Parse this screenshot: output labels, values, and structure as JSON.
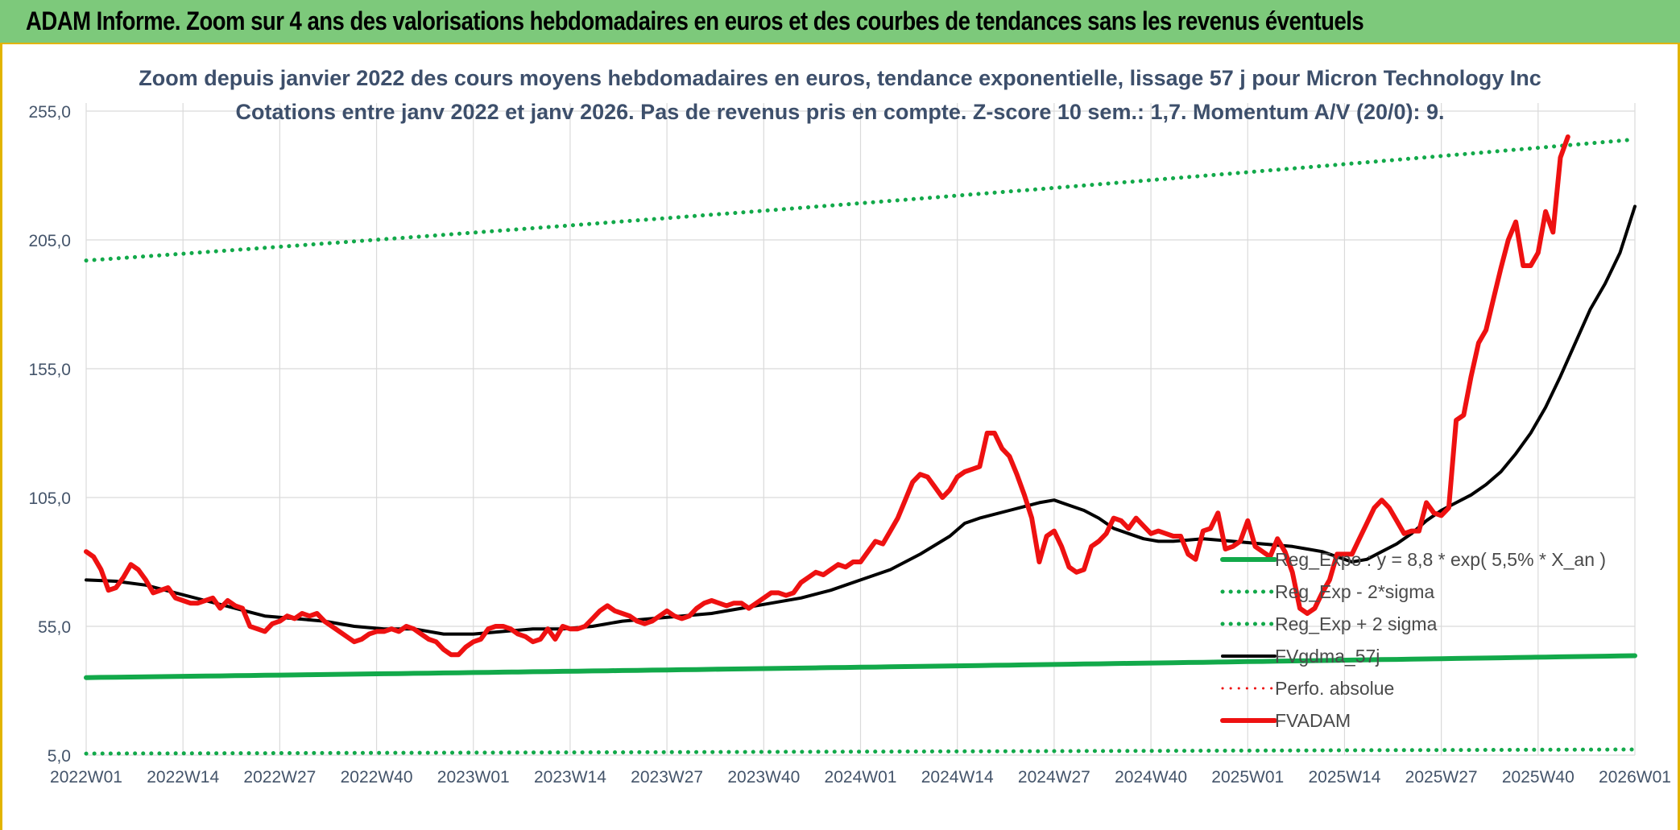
{
  "banner": {
    "title": "ADAM Informe. Zoom sur 4 ans des valorisations hebdomadaires en euros et des courbes de tendances sans les revenus éventuels"
  },
  "colors": {
    "banner_bg": "#7dc97b",
    "accent_border": "#e2b400",
    "green": "#12a94a",
    "red": "#ee1111",
    "black": "#000000",
    "axis_text": "#44546a"
  },
  "chart_data": {
    "type": "line",
    "title_line1": "Zoom depuis janvier 2022 des cours moyens hebdomadaires en euros, tendance exponentielle, lissage 57 j pour Micron Technology Inc",
    "title_line2": "Cotations entre janv 2022 et janv 2026. Pas de revenus pris en compte. Z-score 10 sem.: 1,7. Momentum A/V (20/0): 9.",
    "ylim": [
      5,
      255
    ],
    "y_ticks": [
      "5,0",
      "55,0",
      "105,0",
      "155,0",
      "205,0",
      "255,0"
    ],
    "y_tick_values": [
      5,
      55,
      105,
      155,
      205,
      255
    ],
    "x_range": [
      0,
      208
    ],
    "x_ticks": [
      "2022W01",
      "2022W14",
      "2022W27",
      "2022W40",
      "2023W01",
      "2023W14",
      "2023W27",
      "2023W40",
      "2024W01",
      "2024W14",
      "2024W27",
      "2024W40",
      "2025W01",
      "2025W14",
      "2025W27",
      "2025W40",
      "2026W01"
    ],
    "x_tick_positions": [
      0,
      13,
      26,
      39,
      52,
      65,
      78,
      91,
      104,
      117,
      130,
      143,
      156,
      169,
      182,
      195,
      208
    ],
    "grid": true,
    "legend_position": "bottom-right",
    "series": [
      {
        "name": "Reg_Expo : y = 8,8 * exp( 5,5% *  X_an )",
        "style": "solid",
        "color": "#12a94a",
        "width": 6,
        "points": [
          [
            0,
            35.1
          ],
          [
            208,
            43.6
          ]
        ]
      },
      {
        "name": "Reg_Exp - 2*sigma",
        "style": "dotted",
        "color": "#12a94a",
        "width": 5,
        "points": [
          [
            0,
            5.6
          ],
          [
            208,
            7.2
          ]
        ]
      },
      {
        "name": "Reg_Exp + 2 sigma",
        "style": "dotted",
        "color": "#12a94a",
        "width": 5,
        "points": [
          [
            0,
            197.0
          ],
          [
            208,
            244.0
          ]
        ]
      },
      {
        "name": "FVgdma_57j",
        "style": "solid",
        "color": "#000000",
        "width": 4,
        "points": [
          [
            0,
            73
          ],
          [
            4,
            72.5
          ],
          [
            8,
            71
          ],
          [
            12,
            68
          ],
          [
            16,
            65
          ],
          [
            20,
            62
          ],
          [
            24,
            59
          ],
          [
            28,
            58
          ],
          [
            32,
            57
          ],
          [
            36,
            55
          ],
          [
            40,
            54
          ],
          [
            44,
            54
          ],
          [
            48,
            52
          ],
          [
            52,
            52
          ],
          [
            56,
            53
          ],
          [
            60,
            54
          ],
          [
            64,
            54
          ],
          [
            68,
            55
          ],
          [
            72,
            57
          ],
          [
            76,
            58
          ],
          [
            80,
            59
          ],
          [
            84,
            60
          ],
          [
            88,
            62
          ],
          [
            92,
            64
          ],
          [
            96,
            66
          ],
          [
            100,
            69
          ],
          [
            104,
            73
          ],
          [
            108,
            77
          ],
          [
            112,
            83
          ],
          [
            116,
            90
          ],
          [
            118,
            95
          ],
          [
            120,
            97
          ],
          [
            124,
            100
          ],
          [
            128,
            103
          ],
          [
            130,
            104
          ],
          [
            132,
            102
          ],
          [
            134,
            100
          ],
          [
            136,
            97
          ],
          [
            138,
            93
          ],
          [
            140,
            91
          ],
          [
            142,
            89
          ],
          [
            144,
            88
          ],
          [
            146,
            88
          ],
          [
            150,
            89
          ],
          [
            154,
            88
          ],
          [
            158,
            87
          ],
          [
            162,
            86
          ],
          [
            164,
            85
          ],
          [
            166,
            84
          ],
          [
            168,
            82
          ],
          [
            170,
            80
          ],
          [
            172,
            81
          ],
          [
            174,
            84
          ],
          [
            176,
            87
          ],
          [
            178,
            91
          ],
          [
            180,
            96
          ],
          [
            182,
            100
          ],
          [
            184,
            103
          ],
          [
            186,
            106
          ],
          [
            188,
            110
          ],
          [
            190,
            115
          ],
          [
            192,
            122
          ],
          [
            194,
            130
          ],
          [
            196,
            140
          ],
          [
            198,
            152
          ],
          [
            200,
            165
          ],
          [
            202,
            178
          ],
          [
            204,
            188
          ],
          [
            206,
            200
          ],
          [
            208,
            218
          ]
        ]
      },
      {
        "name": "Perfo. absolue",
        "style": "dotted",
        "color": "#ee1111",
        "width": 3,
        "points": []
      },
      {
        "name": "FVADAM",
        "style": "solid",
        "color": "#ee1111",
        "width": 6,
        "points": [
          [
            0,
            84
          ],
          [
            1,
            82
          ],
          [
            2,
            77
          ],
          [
            3,
            69
          ],
          [
            4,
            70
          ],
          [
            5,
            74
          ],
          [
            6,
            79
          ],
          [
            7,
            77
          ],
          [
            8,
            73
          ],
          [
            9,
            68
          ],
          [
            10,
            69
          ],
          [
            11,
            70
          ],
          [
            12,
            66
          ],
          [
            13,
            65
          ],
          [
            14,
            64
          ],
          [
            15,
            64
          ],
          [
            16,
            65
          ],
          [
            17,
            66
          ],
          [
            18,
            62
          ],
          [
            19,
            65
          ],
          [
            20,
            63
          ],
          [
            21,
            62
          ],
          [
            22,
            55
          ],
          [
            23,
            54
          ],
          [
            24,
            53
          ],
          [
            25,
            56
          ],
          [
            26,
            57
          ],
          [
            27,
            59
          ],
          [
            28,
            58
          ],
          [
            29,
            60
          ],
          [
            30,
            59
          ],
          [
            31,
            60
          ],
          [
            32,
            57
          ],
          [
            33,
            55
          ],
          [
            34,
            53
          ],
          [
            35,
            51
          ],
          [
            36,
            49
          ],
          [
            37,
            50
          ],
          [
            38,
            52
          ],
          [
            39,
            53
          ],
          [
            40,
            53
          ],
          [
            41,
            54
          ],
          [
            42,
            53
          ],
          [
            43,
            55
          ],
          [
            44,
            54
          ],
          [
            45,
            52
          ],
          [
            46,
            50
          ],
          [
            47,
            49
          ],
          [
            48,
            46
          ],
          [
            49,
            44
          ],
          [
            50,
            44
          ],
          [
            51,
            47
          ],
          [
            52,
            49
          ],
          [
            53,
            50
          ],
          [
            54,
            54
          ],
          [
            55,
            55
          ],
          [
            56,
            55
          ],
          [
            57,
            54
          ],
          [
            58,
            52
          ],
          [
            59,
            51
          ],
          [
            60,
            49
          ],
          [
            61,
            50
          ],
          [
            62,
            54
          ],
          [
            63,
            50
          ],
          [
            64,
            55
          ],
          [
            65,
            54
          ],
          [
            66,
            54
          ],
          [
            67,
            55
          ],
          [
            68,
            58
          ],
          [
            69,
            61
          ],
          [
            70,
            63
          ],
          [
            71,
            61
          ],
          [
            72,
            60
          ],
          [
            73,
            59
          ],
          [
            74,
            57
          ],
          [
            75,
            56
          ],
          [
            76,
            57
          ],
          [
            77,
            59
          ],
          [
            78,
            61
          ],
          [
            79,
            59
          ],
          [
            80,
            58
          ],
          [
            81,
            59
          ],
          [
            82,
            62
          ],
          [
            83,
            64
          ],
          [
            84,
            65
          ],
          [
            85,
            64
          ],
          [
            86,
            63
          ],
          [
            87,
            64
          ],
          [
            88,
            64
          ],
          [
            89,
            62
          ],
          [
            90,
            64
          ],
          [
            91,
            66
          ],
          [
            92,
            68
          ],
          [
            93,
            68
          ],
          [
            94,
            67
          ],
          [
            95,
            68
          ],
          [
            96,
            72
          ],
          [
            97,
            74
          ],
          [
            98,
            76
          ],
          [
            99,
            75
          ],
          [
            100,
            77
          ],
          [
            101,
            79
          ],
          [
            102,
            78
          ],
          [
            103,
            80
          ],
          [
            104,
            80
          ],
          [
            105,
            84
          ],
          [
            106,
            88
          ],
          [
            107,
            87
          ],
          [
            108,
            92
          ],
          [
            109,
            97
          ],
          [
            110,
            104
          ],
          [
            111,
            111
          ],
          [
            112,
            114
          ],
          [
            113,
            113
          ],
          [
            114,
            109
          ],
          [
            115,
            105
          ],
          [
            116,
            108
          ],
          [
            117,
            113
          ],
          [
            118,
            115
          ],
          [
            119,
            116
          ],
          [
            120,
            117
          ],
          [
            121,
            130
          ],
          [
            122,
            130
          ],
          [
            123,
            124
          ],
          [
            124,
            121
          ],
          [
            125,
            114
          ],
          [
            126,
            106
          ],
          [
            127,
            97
          ],
          [
            128,
            80
          ],
          [
            129,
            90
          ],
          [
            130,
            92
          ],
          [
            131,
            86
          ],
          [
            132,
            78
          ],
          [
            133,
            76
          ],
          [
            134,
            77
          ],
          [
            135,
            86
          ],
          [
            136,
            88
          ],
          [
            137,
            91
          ],
          [
            138,
            97
          ],
          [
            139,
            96
          ],
          [
            140,
            93
          ],
          [
            141,
            97
          ],
          [
            142,
            94
          ],
          [
            143,
            91
          ],
          [
            144,
            92
          ],
          [
            145,
            91
          ],
          [
            146,
            90
          ],
          [
            147,
            90
          ],
          [
            148,
            83
          ],
          [
            149,
            81
          ],
          [
            150,
            92
          ],
          [
            151,
            93
          ],
          [
            152,
            99
          ],
          [
            153,
            85
          ],
          [
            154,
            86
          ],
          [
            155,
            88
          ],
          [
            156,
            96
          ],
          [
            157,
            86
          ],
          [
            158,
            84
          ],
          [
            159,
            82
          ],
          [
            160,
            89
          ],
          [
            161,
            84
          ],
          [
            162,
            76
          ],
          [
            163,
            62
          ],
          [
            164,
            60
          ],
          [
            165,
            62
          ],
          [
            166,
            68
          ],
          [
            167,
            73
          ],
          [
            168,
            83
          ],
          [
            169,
            83
          ],
          [
            170,
            83
          ],
          [
            171,
            89
          ],
          [
            172,
            95
          ],
          [
            173,
            101
          ],
          [
            174,
            104
          ],
          [
            175,
            101
          ],
          [
            176,
            96
          ],
          [
            177,
            91
          ],
          [
            178,
            92
          ],
          [
            179,
            92
          ],
          [
            180,
            103
          ],
          [
            181,
            99
          ],
          [
            182,
            98
          ],
          [
            183,
            101
          ],
          [
            184,
            135
          ],
          [
            185,
            137
          ],
          [
            186,
            152
          ],
          [
            187,
            165
          ],
          [
            188,
            170
          ],
          [
            189,
            182
          ],
          [
            190,
            194
          ],
          [
            191,
            205
          ],
          [
            192,
            212
          ],
          [
            193,
            195
          ],
          [
            194,
            195
          ],
          [
            195,
            200
          ],
          [
            196,
            216
          ],
          [
            197,
            208
          ],
          [
            198,
            237
          ],
          [
            199,
            245
          ]
        ]
      }
    ]
  }
}
